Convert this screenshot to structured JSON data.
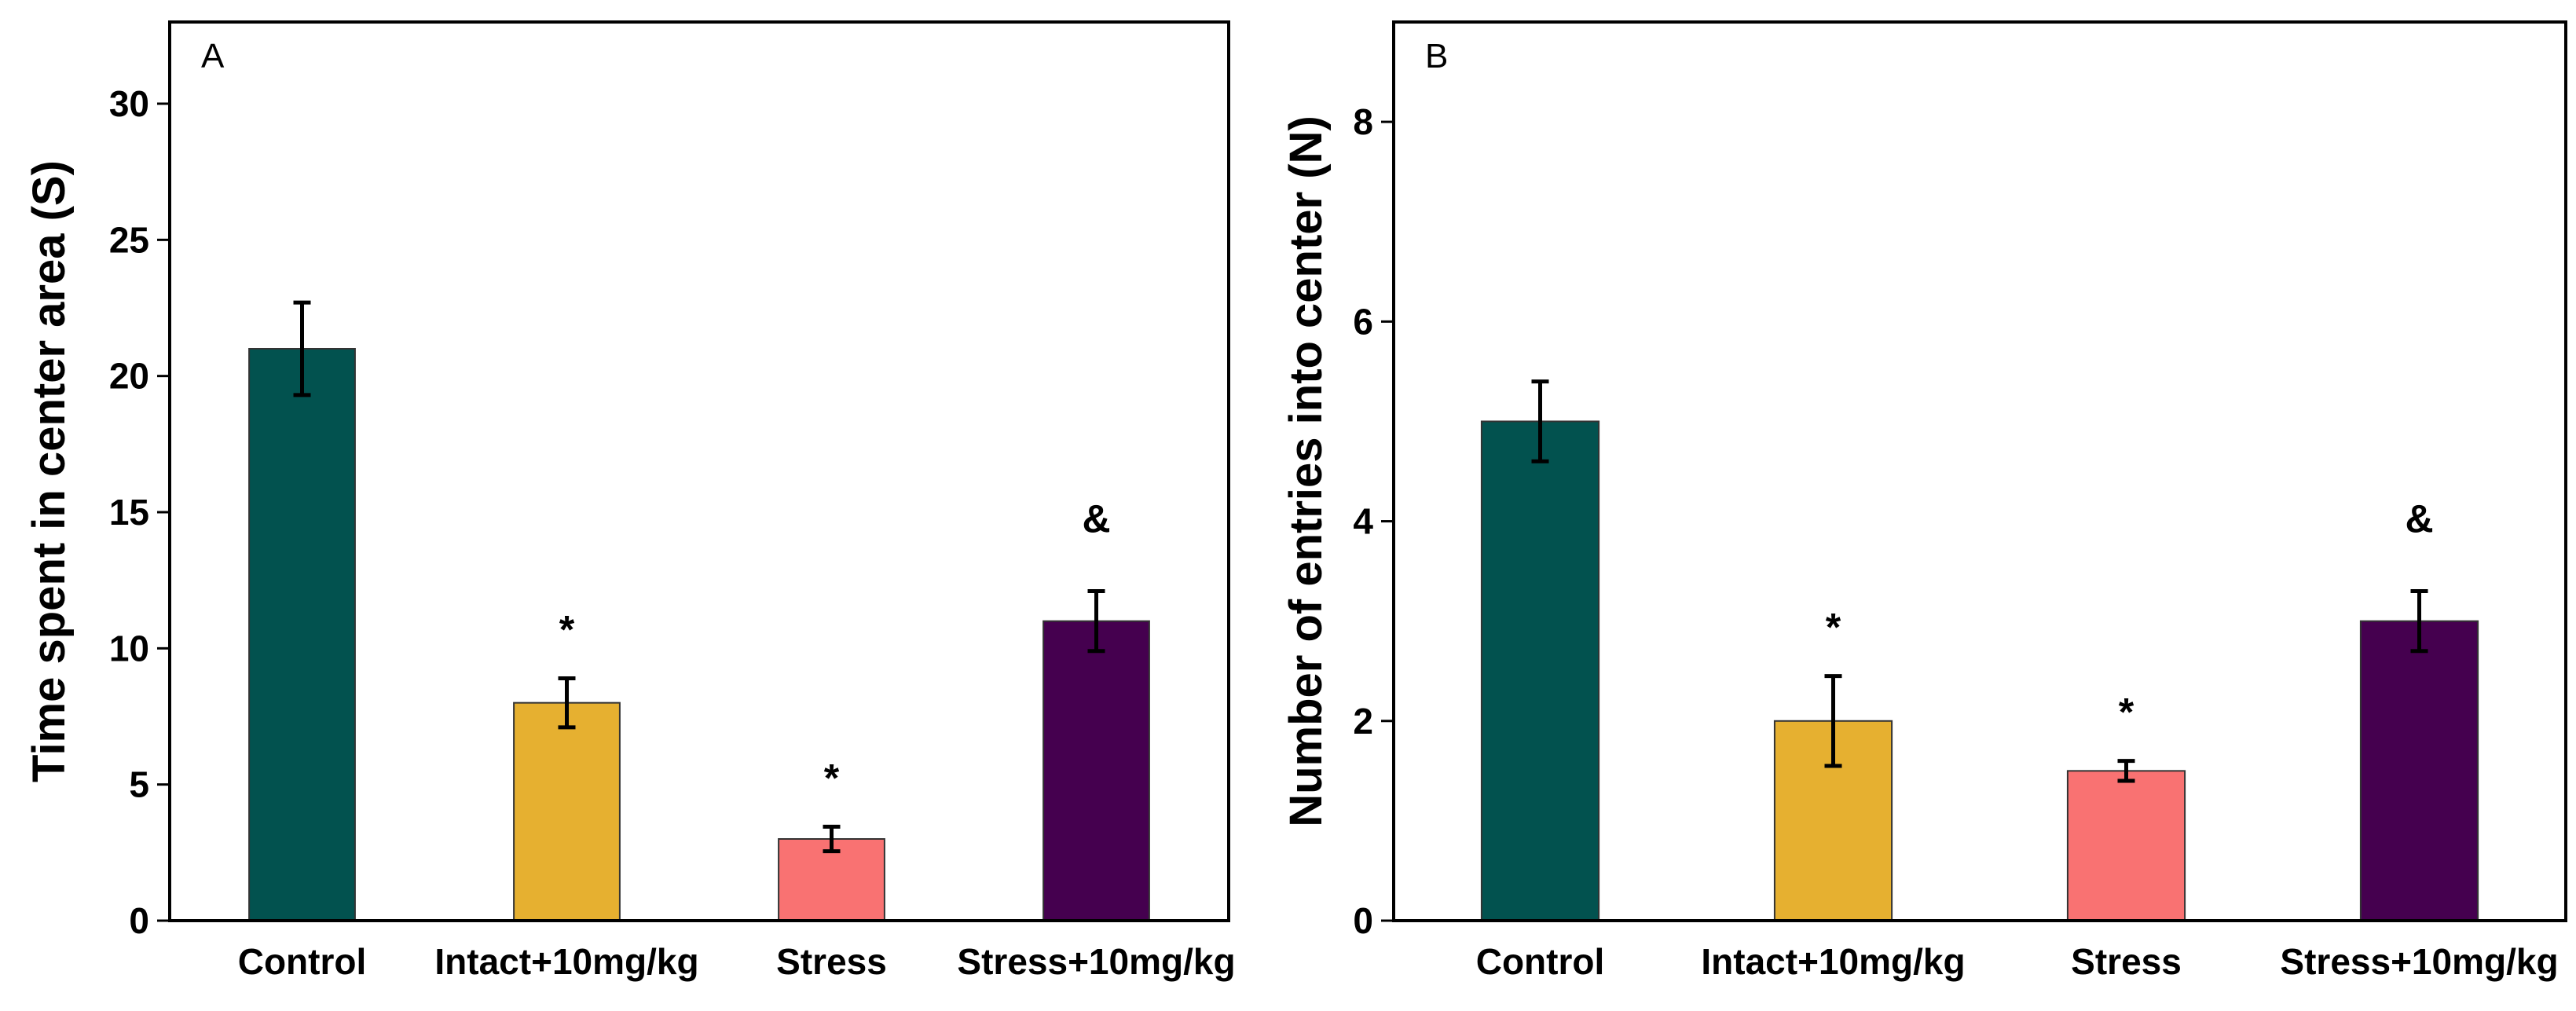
{
  "chart_data": [
    {
      "type": "bar",
      "panel_label": "A",
      "categories": [
        "Control",
        "Intact+10mg/kg",
        "Stress",
        "Stress+10mg/kg"
      ],
      "values": [
        21,
        8,
        3,
        11
      ],
      "errors": [
        1.7,
        0.9,
        0.45,
        1.1
      ],
      "annotations": [
        "",
        "*",
        "*",
        "&"
      ],
      "colors": [
        "#02524f",
        "#e6b030",
        "#f97272",
        "#45004f"
      ],
      "xlabel": "",
      "ylabel": "Time spent in center area (S)",
      "ylim": [
        0,
        33
      ],
      "yticks": [
        0,
        5,
        10,
        15,
        20,
        25,
        30
      ],
      "grid": false
    },
    {
      "type": "bar",
      "panel_label": "B",
      "categories": [
        "Control",
        "Intact+10mg/kg",
        "Stress",
        "Stress+10mg/kg"
      ],
      "values": [
        5,
        2,
        1.5,
        3
      ],
      "errors": [
        0.4,
        0.45,
        0.1,
        0.3
      ],
      "annotations": [
        "",
        "*",
        "*",
        "&"
      ],
      "colors": [
        "#02524f",
        "#e6b030",
        "#f97272",
        "#45004f"
      ],
      "xlabel": "",
      "ylabel": "Number of entries into center (N)",
      "ylim": [
        0,
        9
      ],
      "yticks": [
        0,
        2,
        4,
        6,
        8
      ],
      "grid": false
    }
  ]
}
